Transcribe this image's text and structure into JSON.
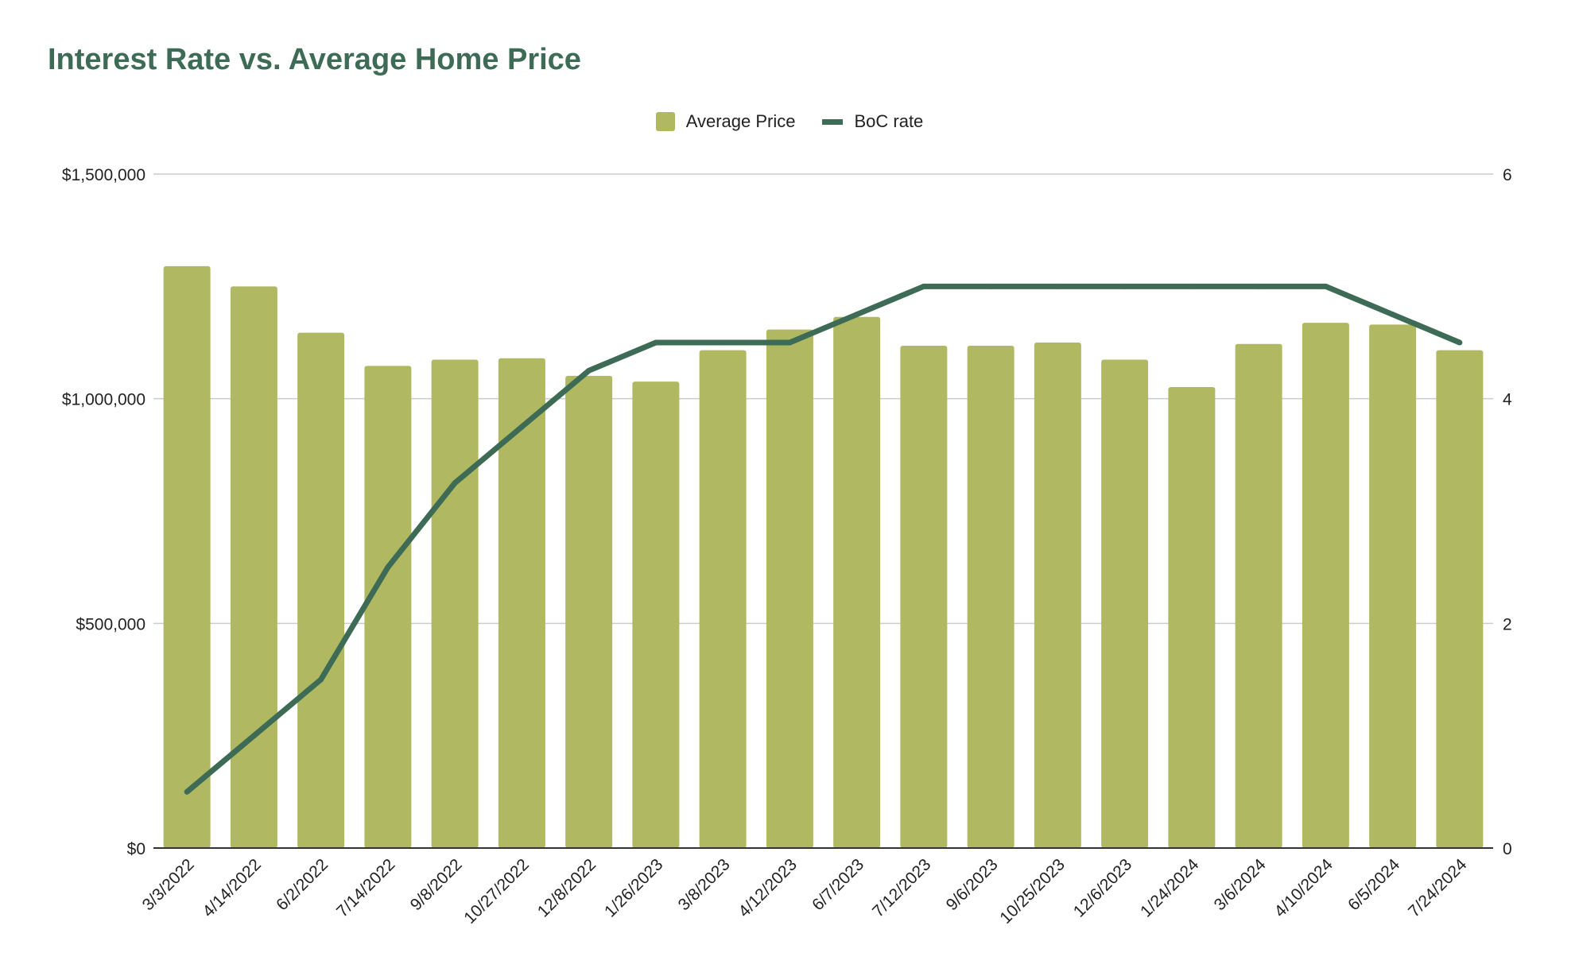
{
  "chart_data": {
    "type": "bar",
    "title": "Interest Rate vs. Average Home Price",
    "categories": [
      "3/3/2022",
      "4/14/2022",
      "6/2/2022",
      "7/14/2022",
      "9/8/2022",
      "10/27/2022",
      "12/8/2022",
      "1/26/2023",
      "3/8/2023",
      "4/12/2023",
      "6/7/2023",
      "7/12/2023",
      "9/6/2023",
      "10/25/2023",
      "12/6/2023",
      "1/24/2024",
      "3/6/2024",
      "4/10/2024",
      "6/5/2024",
      "7/24/2024"
    ],
    "series": [
      {
        "name": "Average Price",
        "type": "bar",
        "axis": "left",
        "color": "#b0b961",
        "values": [
          1295000,
          1250000,
          1147000,
          1073000,
          1087000,
          1090000,
          1051000,
          1038000,
          1108000,
          1154000,
          1182000,
          1118000,
          1118000,
          1125000,
          1087000,
          1026000,
          1122000,
          1169000,
          1165000,
          1108000
        ]
      },
      {
        "name": "BoC rate",
        "type": "line",
        "axis": "right",
        "color": "#3d6b55",
        "values": [
          0.5,
          1.0,
          1.5,
          2.5,
          3.25,
          3.75,
          4.25,
          4.5,
          4.5,
          4.5,
          4.75,
          5.0,
          5.0,
          5.0,
          5.0,
          5.0,
          5.0,
          5.0,
          4.75,
          4.5
        ]
      }
    ],
    "y_left": {
      "min": 0,
      "max": 1500000,
      "ticks": [
        0,
        500000,
        1000000,
        1500000
      ],
      "tick_labels": [
        "$0",
        "$500,000",
        "$1,000,000",
        "$1,500,000"
      ]
    },
    "y_right": {
      "min": 0,
      "max": 6,
      "ticks": [
        0,
        2,
        4,
        6
      ],
      "tick_labels": [
        "0",
        "2",
        "4",
        "6"
      ]
    },
    "xlabel": "",
    "ylabel": "",
    "grid": true,
    "legend": "top-center"
  }
}
